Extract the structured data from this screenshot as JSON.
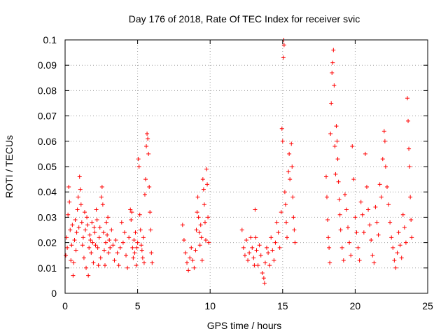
{
  "chart_data": {
    "type": "scatter",
    "title": "Day 176 of 2018, Rate Of TEC Index for receiver svic",
    "xlabel": "GPS time / hours",
    "ylabel": "ROTI / TECUs",
    "xlim": [
      0,
      25
    ],
    "ylim": [
      0,
      0.1
    ],
    "grid": true,
    "marker": "plus",
    "color": "#ff0000",
    "x_ticks": [
      {
        "value": 0,
        "label": "0"
      },
      {
        "value": 5,
        "label": "5"
      },
      {
        "value": 10,
        "label": "10"
      },
      {
        "value": 15,
        "label": "15"
      },
      {
        "value": 20,
        "label": "20"
      },
      {
        "value": 25,
        "label": "25"
      }
    ],
    "y_ticks": [
      {
        "value": 0,
        "label": "0"
      },
      {
        "value": 0.01,
        "label": "0.01"
      },
      {
        "value": 0.02,
        "label": "0.02"
      },
      {
        "value": 0.03,
        "label": "0.03"
      },
      {
        "value": 0.04,
        "label": "0.04"
      },
      {
        "value": 0.05,
        "label": "0.05"
      },
      {
        "value": 0.06,
        "label": "0.06"
      },
      {
        "value": 0.07,
        "label": "0.07"
      },
      {
        "value": 0.08,
        "label": "0.08"
      },
      {
        "value": 0.09,
        "label": "0.09"
      },
      {
        "value": 0.1,
        "label": "0.1"
      }
    ],
    "series": [
      {
        "name": "ROTI",
        "points": [
          [
            0.05,
            0.015
          ],
          [
            0.1,
            0.022
          ],
          [
            0.15,
            0.018
          ],
          [
            0.2,
            0.031
          ],
          [
            0.25,
            0.042
          ],
          [
            0.3,
            0.036
          ],
          [
            0.35,
            0.025
          ],
          [
            0.4,
            0.013
          ],
          [
            0.45,
            0.019
          ],
          [
            0.5,
            0.027
          ],
          [
            0.55,
            0.007
          ],
          [
            0.6,
            0.012
          ],
          [
            0.65,
            0.021
          ],
          [
            0.7,
            0.029
          ],
          [
            0.75,
            0.017
          ],
          [
            0.8,
            0.024
          ],
          [
            0.85,
            0.033
          ],
          [
            0.9,
            0.038
          ],
          [
            0.95,
            0.026
          ],
          [
            1.0,
            0.046
          ],
          [
            1.05,
            0.041
          ],
          [
            1.1,
            0.035
          ],
          [
            1.15,
            0.028
          ],
          [
            1.2,
            0.019
          ],
          [
            1.25,
            0.022
          ],
          [
            1.3,
            0.014
          ],
          [
            1.35,
            0.032
          ],
          [
            1.4,
            0.025
          ],
          [
            1.45,
            0.01
          ],
          [
            1.5,
            0.03
          ],
          [
            1.55,
            0.027
          ],
          [
            1.6,
            0.007
          ],
          [
            1.65,
            0.018
          ],
          [
            1.7,
            0.023
          ],
          [
            1.75,
            0.021
          ],
          [
            1.8,
            0.016
          ],
          [
            1.85,
            0.028
          ],
          [
            1.9,
            0.02
          ],
          [
            1.95,
            0.012
          ],
          [
            2.0,
            0.026
          ],
          [
            2.05,
            0.024
          ],
          [
            2.1,
            0.019
          ],
          [
            2.15,
            0.033
          ],
          [
            2.2,
            0.029
          ],
          [
            2.25,
            0.018
          ],
          [
            2.3,
            0.011
          ],
          [
            2.35,
            0.022
          ],
          [
            2.4,
            0.026
          ],
          [
            2.45,
            0.014
          ],
          [
            2.5,
            0.038
          ],
          [
            2.55,
            0.042
          ],
          [
            2.6,
            0.035
          ],
          [
            2.65,
            0.024
          ],
          [
            2.7,
            0.017
          ],
          [
            2.75,
            0.011
          ],
          [
            2.8,
            0.02
          ],
          [
            2.85,
            0.028
          ],
          [
            2.9,
            0.023
          ],
          [
            2.95,
            0.03
          ],
          [
            3.0,
            0.016
          ],
          [
            3.05,
            0.021
          ],
          [
            3.1,
            0.018
          ],
          [
            3.2,
            0.025
          ],
          [
            3.3,
            0.019
          ],
          [
            3.4,
            0.013
          ],
          [
            3.5,
            0.021
          ],
          [
            3.6,
            0.016
          ],
          [
            3.7,
            0.011
          ],
          [
            3.8,
            0.018
          ],
          [
            3.9,
            0.028
          ],
          [
            4.0,
            0.02
          ],
          [
            4.1,
            0.024
          ],
          [
            4.2,
            0.015
          ],
          [
            4.3,
            0.01
          ],
          [
            4.4,
            0.022
          ],
          [
            4.5,
            0.033
          ],
          [
            4.55,
            0.029
          ],
          [
            4.6,
            0.032
          ],
          [
            4.65,
            0.018
          ],
          [
            4.7,
            0.014
          ],
          [
            4.75,
            0.021
          ],
          [
            4.8,
            0.016
          ],
          [
            4.85,
            0.024
          ],
          [
            4.9,
            0.011
          ],
          [
            4.95,
            0.018
          ],
          [
            5.0,
            0.02
          ],
          [
            5.05,
            0.053
          ],
          [
            5.1,
            0.05
          ],
          [
            5.15,
            0.031
          ],
          [
            5.2,
            0.025
          ],
          [
            5.25,
            0.019
          ],
          [
            5.3,
            0.017
          ],
          [
            5.35,
            0.014
          ],
          [
            5.4,
            0.022
          ],
          [
            5.45,
            0.012
          ],
          [
            5.5,
            0.039
          ],
          [
            5.55,
            0.045
          ],
          [
            5.6,
            0.058
          ],
          [
            5.65,
            0.063
          ],
          [
            5.7,
            0.061
          ],
          [
            5.75,
            0.055
          ],
          [
            5.8,
            0.042
          ],
          [
            5.85,
            0.032
          ],
          [
            5.9,
            0.025
          ],
          [
            5.95,
            0.016
          ],
          [
            6.0,
            0.012
          ],
          [
            8.1,
            0.027
          ],
          [
            8.2,
            0.021
          ],
          [
            8.3,
            0.016
          ],
          [
            8.4,
            0.012
          ],
          [
            8.5,
            0.009
          ],
          [
            8.6,
            0.014
          ],
          [
            8.7,
            0.018
          ],
          [
            8.8,
            0.013
          ],
          [
            8.9,
            0.01
          ],
          [
            9.0,
            0.017
          ],
          [
            9.05,
            0.025
          ],
          [
            9.1,
            0.032
          ],
          [
            9.15,
            0.038
          ],
          [
            9.2,
            0.03
          ],
          [
            9.25,
            0.024
          ],
          [
            9.3,
            0.019
          ],
          [
            9.35,
            0.027
          ],
          [
            9.4,
            0.022
          ],
          [
            9.45,
            0.013
          ],
          [
            9.5,
            0.045
          ],
          [
            9.55,
            0.041
          ],
          [
            9.6,
            0.035
          ],
          [
            9.65,
            0.028
          ],
          [
            9.7,
            0.021
          ],
          [
            9.75,
            0.049
          ],
          [
            9.8,
            0.043
          ],
          [
            9.85,
            0.03
          ],
          [
            9.9,
            0.02
          ],
          [
            12.2,
            0.025
          ],
          [
            12.3,
            0.018
          ],
          [
            12.4,
            0.015
          ],
          [
            12.5,
            0.021
          ],
          [
            12.6,
            0.013
          ],
          [
            12.7,
            0.016
          ],
          [
            12.8,
            0.022
          ],
          [
            12.9,
            0.018
          ],
          [
            13.0,
            0.014
          ],
          [
            13.05,
            0.011
          ],
          [
            13.1,
            0.033
          ],
          [
            13.15,
            0.022
          ],
          [
            13.2,
            0.017
          ],
          [
            13.3,
            0.011
          ],
          [
            13.4,
            0.019
          ],
          [
            13.5,
            0.015
          ],
          [
            13.6,
            0.008
          ],
          [
            13.7,
            0.006
          ],
          [
            13.75,
            0.004
          ],
          [
            13.8,
            0.012
          ],
          [
            13.9,
            0.018
          ],
          [
            14.0,
            0.016
          ],
          [
            14.1,
            0.011
          ],
          [
            14.2,
            0.022
          ],
          [
            14.3,
            0.017
          ],
          [
            14.4,
            0.013
          ],
          [
            14.5,
            0.02
          ],
          [
            14.6,
            0.028
          ],
          [
            14.7,
            0.024
          ],
          [
            14.8,
            0.018
          ],
          [
            14.9,
            0.032
          ],
          [
            14.95,
            0.065
          ],
          [
            15.0,
            0.06
          ],
          [
            15.05,
            0.093
          ],
          [
            15.08,
            0.1
          ],
          [
            15.1,
            0.098
          ],
          [
            15.15,
            0.04
          ],
          [
            15.2,
            0.035
          ],
          [
            15.25,
            0.028
          ],
          [
            15.3,
            0.022
          ],
          [
            15.4,
            0.048
          ],
          [
            15.45,
            0.055
          ],
          [
            15.5,
            0.045
          ],
          [
            15.6,
            0.059
          ],
          [
            15.65,
            0.05
          ],
          [
            15.7,
            0.038
          ],
          [
            15.75,
            0.03
          ],
          [
            15.8,
            0.025
          ],
          [
            15.85,
            0.02
          ],
          [
            18.0,
            0.046
          ],
          [
            18.05,
            0.038
          ],
          [
            18.1,
            0.029
          ],
          [
            18.15,
            0.022
          ],
          [
            18.2,
            0.018
          ],
          [
            18.25,
            0.012
          ],
          [
            18.3,
            0.063
          ],
          [
            18.35,
            0.075
          ],
          [
            18.4,
            0.087
          ],
          [
            18.45,
            0.091
          ],
          [
            18.5,
            0.096
          ],
          [
            18.55,
            0.082
          ],
          [
            18.6,
            0.058
          ],
          [
            18.65,
            0.047
          ],
          [
            18.7,
            0.066
          ],
          [
            18.75,
            0.06
          ],
          [
            18.8,
            0.053
          ],
          [
            18.85,
            0.044
          ],
          [
            18.9,
            0.037
          ],
          [
            18.95,
            0.031
          ],
          [
            19.0,
            0.025
          ],
          [
            19.1,
            0.018
          ],
          [
            19.2,
            0.013
          ],
          [
            19.3,
            0.039
          ],
          [
            19.4,
            0.033
          ],
          [
            19.5,
            0.026
          ],
          [
            19.6,
            0.02
          ],
          [
            19.7,
            0.015
          ],
          [
            19.8,
            0.058
          ],
          [
            19.9,
            0.045
          ],
          [
            20.0,
            0.03
          ],
          [
            20.1,
            0.024
          ],
          [
            20.2,
            0.018
          ],
          [
            20.3,
            0.013
          ],
          [
            20.4,
            0.036
          ],
          [
            20.5,
            0.031
          ],
          [
            20.6,
            0.024
          ],
          [
            20.7,
            0.055
          ],
          [
            20.8,
            0.042
          ],
          [
            20.9,
            0.033
          ],
          [
            21.0,
            0.027
          ],
          [
            21.1,
            0.021
          ],
          [
            21.2,
            0.015
          ],
          [
            21.3,
            0.012
          ],
          [
            21.4,
            0.034
          ],
          [
            21.5,
            0.028
          ],
          [
            21.6,
            0.023
          ],
          [
            21.7,
            0.043
          ],
          [
            21.8,
            0.038
          ],
          [
            21.9,
            0.053
          ],
          [
            22.0,
            0.064
          ],
          [
            22.05,
            0.06
          ],
          [
            22.1,
            0.05
          ],
          [
            22.2,
            0.042
          ],
          [
            22.3,
            0.035
          ],
          [
            22.4,
            0.028
          ],
          [
            22.5,
            0.022
          ],
          [
            22.6,
            0.018
          ],
          [
            22.7,
            0.013
          ],
          [
            22.8,
            0.01
          ],
          [
            22.9,
            0.016
          ],
          [
            23.0,
            0.024
          ],
          [
            23.1,
            0.019
          ],
          [
            23.2,
            0.014
          ],
          [
            23.3,
            0.031
          ],
          [
            23.4,
            0.026
          ],
          [
            23.5,
            0.02
          ],
          [
            23.6,
            0.077
          ],
          [
            23.65,
            0.068
          ],
          [
            23.7,
            0.057
          ],
          [
            23.75,
            0.05
          ],
          [
            23.8,
            0.038
          ],
          [
            23.85,
            0.029
          ],
          [
            23.9,
            0.022
          ]
        ]
      }
    ]
  }
}
